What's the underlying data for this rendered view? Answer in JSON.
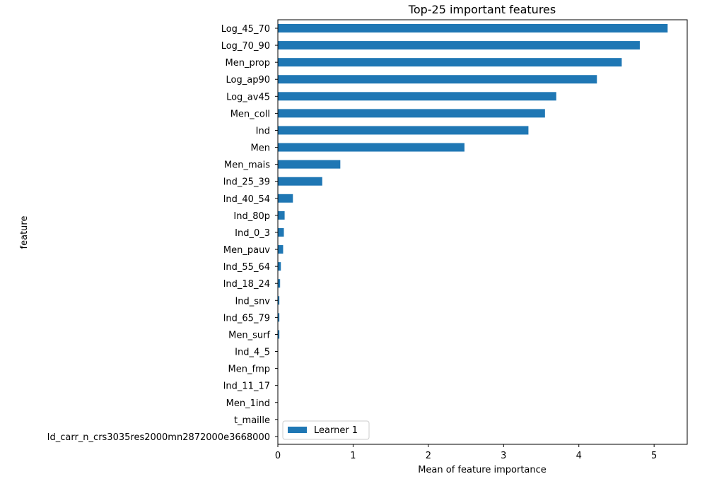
{
  "chart_data": {
    "type": "bar",
    "orientation": "horizontal",
    "title": "Top-25 important features",
    "xlabel": "Mean of feature importance",
    "ylabel": "feature",
    "xlim": [
      0,
      5.44
    ],
    "xticks": [
      0,
      1,
      2,
      3,
      4,
      5
    ],
    "grid": false,
    "legend_position": "lower-left",
    "categories": [
      "Log_45_70",
      "Log_70_90",
      "Men_prop",
      "Log_ap90",
      "Log_av45",
      "Men_coll",
      "Ind",
      "Men",
      "Men_mais",
      "Ind_25_39",
      "Ind_40_54",
      "Ind_80p",
      "Ind_0_3",
      "Men_pauv",
      "Ind_55_64",
      "Ind_18_24",
      "Ind_snv",
      "Ind_65_79",
      "Men_surf",
      "Ind_4_5",
      "Men_fmp",
      "Ind_11_17",
      "Men_1ind",
      "t_maille",
      "Id_carr_n_crs3035res2000mn2872000e3668000"
    ],
    "series": [
      {
        "name": "Learner 1",
        "color": "#1f77b4",
        "values": [
          5.18,
          4.81,
          4.57,
          4.24,
          3.7,
          3.55,
          3.33,
          2.48,
          0.83,
          0.59,
          0.2,
          0.09,
          0.08,
          0.07,
          0.04,
          0.03,
          0.02,
          0.02,
          0.02,
          0.004,
          0.003,
          0.002,
          0.002,
          0.001,
          0.0
        ]
      }
    ]
  }
}
